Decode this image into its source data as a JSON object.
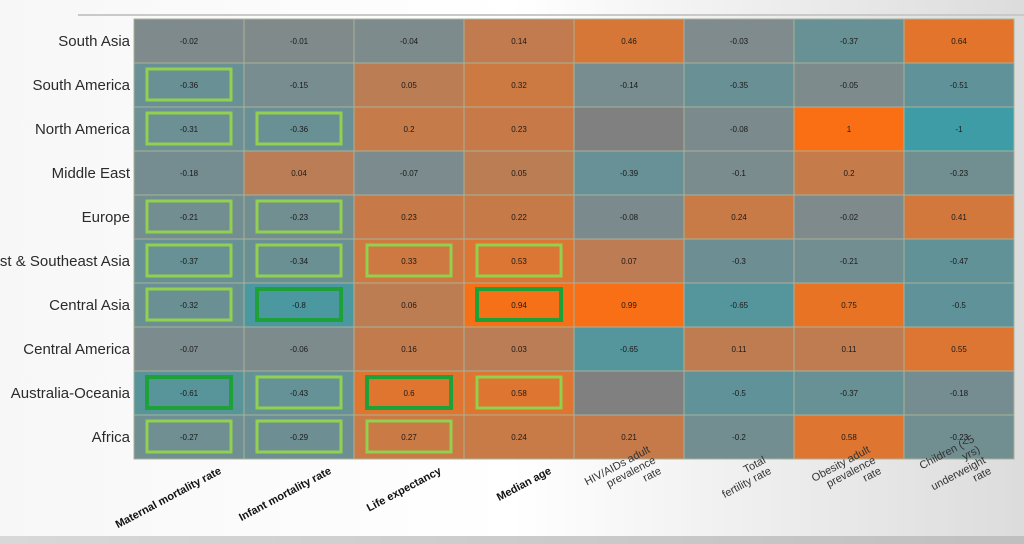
{
  "chart_data": {
    "type": "heatmap",
    "title": "",
    "rows": [
      "South Asia",
      "South America",
      "North America",
      "Middle East",
      "Europe",
      "East & Southeast Asia",
      "Central Asia",
      "Central America",
      "Australia-Oceania",
      "Africa"
    ],
    "columns": [
      "Maternal mortality rate",
      "Infant mortality rate",
      "Life expectancy",
      "Median age",
      "HIV/AIDs adult prevalence rate",
      "Total fertility rate",
      "Obesity adult prevalence rate",
      "Children (<5 yrs) underweight rate"
    ],
    "bold_columns": [
      0,
      1,
      2,
      3
    ],
    "values": [
      [
        -0.02,
        -0.01,
        -0.04,
        0.14,
        0.46,
        -0.03,
        -0.37,
        0.64
      ],
      [
        -0.36,
        -0.15,
        0.05,
        0.32,
        -0.14,
        -0.35,
        -0.05,
        -0.51
      ],
      [
        -0.31,
        -0.36,
        0.2,
        0.23,
        null,
        -0.08,
        1,
        -1
      ],
      [
        -0.18,
        0.04,
        -0.07,
        0.05,
        -0.39,
        -0.1,
        0.2,
        -0.23
      ],
      [
        -0.21,
        -0.23,
        0.23,
        0.22,
        -0.08,
        0.24,
        -0.02,
        0.41
      ],
      [
        -0.37,
        -0.34,
        0.33,
        0.53,
        0.07,
        -0.3,
        -0.21,
        -0.47
      ],
      [
        -0.32,
        -0.8,
        0.06,
        0.94,
        0.99,
        -0.65,
        0.75,
        -0.5
      ],
      [
        -0.07,
        -0.06,
        0.16,
        0.03,
        -0.65,
        0.11,
        0.11,
        0.55
      ],
      [
        -0.61,
        -0.43,
        0.6,
        0.58,
        null,
        -0.5,
        -0.37,
        -0.18
      ],
      [
        -0.27,
        -0.29,
        0.27,
        0.24,
        0.21,
        -0.2,
        0.58,
        -0.23
      ]
    ],
    "highlights": [
      {
        "row": 1,
        "col": 0,
        "strength": "light"
      },
      {
        "row": 2,
        "col": 0,
        "strength": "light"
      },
      {
        "row": 2,
        "col": 1,
        "strength": "light"
      },
      {
        "row": 4,
        "col": 0,
        "strength": "light"
      },
      {
        "row": 4,
        "col": 1,
        "strength": "light"
      },
      {
        "row": 5,
        "col": 0,
        "strength": "light"
      },
      {
        "row": 5,
        "col": 1,
        "strength": "light"
      },
      {
        "row": 5,
        "col": 2,
        "strength": "light"
      },
      {
        "row": 5,
        "col": 3,
        "strength": "light"
      },
      {
        "row": 6,
        "col": 0,
        "strength": "light"
      },
      {
        "row": 6,
        "col": 1,
        "strength": "strong"
      },
      {
        "row": 6,
        "col": 3,
        "strength": "strong"
      },
      {
        "row": 8,
        "col": 0,
        "strength": "strong"
      },
      {
        "row": 8,
        "col": 1,
        "strength": "light"
      },
      {
        "row": 8,
        "col": 2,
        "strength": "strong"
      },
      {
        "row": 8,
        "col": 3,
        "strength": "light"
      },
      {
        "row": 9,
        "col": 0,
        "strength": "light"
      },
      {
        "row": 9,
        "col": 1,
        "strength": "light"
      },
      {
        "row": 9,
        "col": 2,
        "strength": "light"
      }
    ],
    "colors": {
      "negative": "#3e9ca6",
      "neutral": "#888888",
      "positive": "#fa6f14",
      "missing": "#808080",
      "highlight_light": "#92d050",
      "highlight_strong": "#1fa13a",
      "cell_border": "#a9b29a"
    },
    "legend": "none",
    "grid": true
  }
}
